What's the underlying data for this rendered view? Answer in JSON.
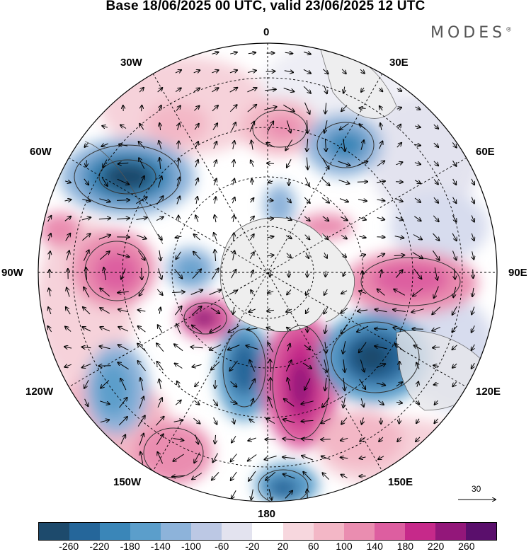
{
  "title": "Base 18/06/2025 00 UTC, valid 23/06/2025 12 UTC",
  "brand": "MODES",
  "brand_mark": "®",
  "lon_labels": {
    "deg0": "0",
    "deg30e": "30E",
    "deg60e": "60E",
    "deg90e": "90E",
    "deg120e": "120E",
    "deg150e": "150E",
    "deg180": "180",
    "deg150w": "150W",
    "deg120w": "120W",
    "deg90w": "90W",
    "deg60w": "60W",
    "deg30w": "30W"
  },
  "reference_vector": {
    "label": "30"
  },
  "colorbar": {
    "colors": [
      "#1d4a6c",
      "#25669a",
      "#3a86b8",
      "#5b9ecb",
      "#8db3da",
      "#bcc8e4",
      "#e3e3ef",
      "#ffffff",
      "#f7d7de",
      "#f3b7c6",
      "#ea8db0",
      "#dd5ea0",
      "#c6298a",
      "#93177a",
      "#5a0f6c"
    ],
    "ticks": [
      "-260",
      "-220",
      "-180",
      "-140",
      "-100",
      "-60",
      "-20",
      "20",
      "60",
      "100",
      "140",
      "180",
      "220",
      "260"
    ]
  },
  "icons": {
    "map": "polar-stereographic-map"
  }
}
